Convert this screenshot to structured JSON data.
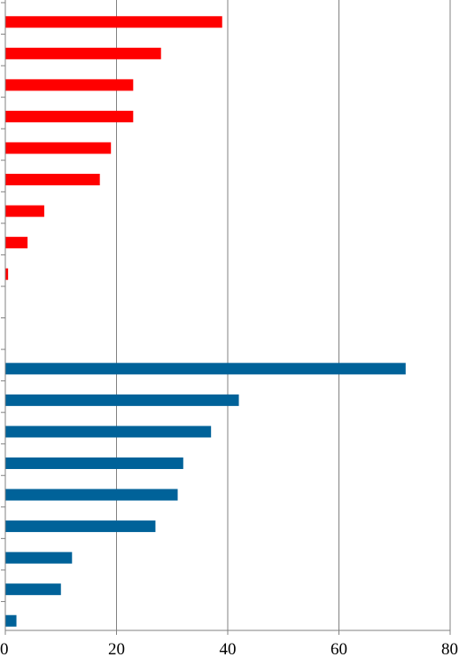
{
  "chart_data": {
    "type": "bar",
    "orientation": "horizontal",
    "xlim": [
      0,
      80
    ],
    "x_ticks": [
      "0",
      "20",
      "40",
      "60",
      "80"
    ],
    "grid": "vertical",
    "series": [
      {
        "color": "#ff0000",
        "values": [
          39,
          28,
          23,
          23,
          19,
          17,
          7,
          4,
          0.5,
          0
        ]
      },
      {
        "color": "#006299",
        "values": [
          72,
          42,
          37,
          32,
          31,
          27,
          12,
          10,
          2
        ]
      }
    ]
  }
}
